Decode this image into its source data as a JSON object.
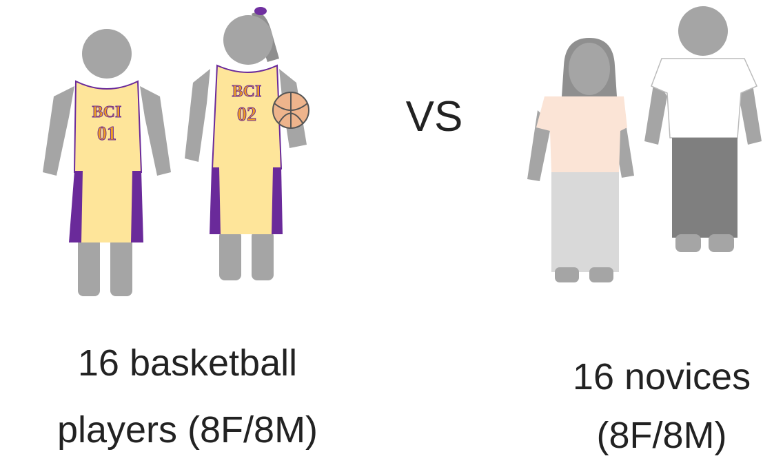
{
  "jerseys": [
    {
      "team": "BCI",
      "number": "01"
    },
    {
      "team": "BCI",
      "number": "02"
    }
  ],
  "separator": "VS",
  "groups": [
    {
      "lines": [
        "16 basketball",
        "players (8F/8M)"
      ]
    },
    {
      "lines": [
        "16 novices",
        "(8F/8M)"
      ]
    }
  ]
}
